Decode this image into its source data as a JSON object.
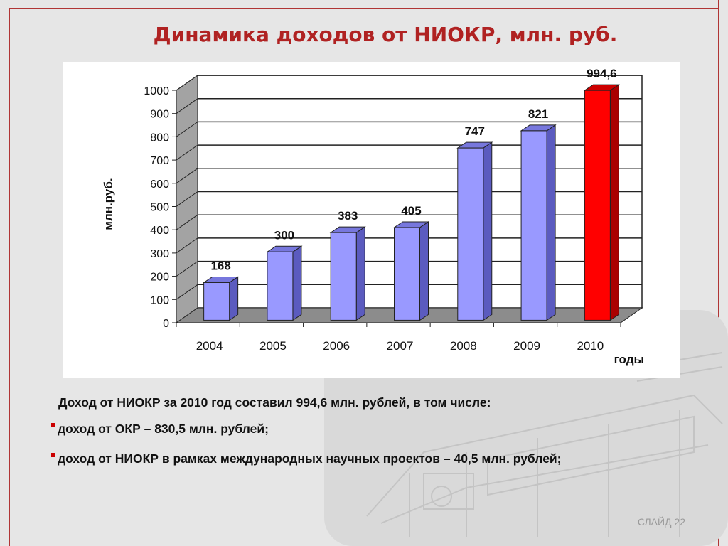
{
  "slide": {
    "title": "Динамика доходов от НИОКР, млн. руб.",
    "slide_number": "СЛАЙД 22",
    "text": {
      "intro": "Доход от НИОКР за 2010 год составил 994,6 млн. рублей, в том числе:",
      "bullets": [
        "доход от ОКР – 830,5 млн. рублей;",
        "доход от НИОКР в рамках международных научных проектов – 40,5 млн. рублей;"
      ]
    }
  },
  "colors": {
    "bar": "#9999ff",
    "bar_side": "#5b5bbf",
    "bar_top": "#7777dd",
    "highlight_bar": "#ff0000",
    "highlight_side": "#aa0000",
    "highlight_top": "#cc0000",
    "title": "#b02222",
    "frame": "#b03535"
  },
  "chart_data": {
    "type": "bar",
    "title": "",
    "xlabel": "годы",
    "ylabel": "млн.руб.",
    "categories": [
      "2004",
      "2005",
      "2006",
      "2007",
      "2008",
      "2009",
      "2010"
    ],
    "values": [
      168,
      300,
      383,
      405,
      747,
      821,
      994.6
    ],
    "data_labels": [
      "168",
      "300",
      "383",
      "405",
      "747",
      "821",
      "994,6"
    ],
    "highlight_index": 6,
    "ylim": [
      0,
      1000
    ],
    "yticks": [
      0,
      100,
      200,
      300,
      400,
      500,
      600,
      700,
      800,
      900,
      1000
    ],
    "grid": true,
    "three_d": true
  }
}
